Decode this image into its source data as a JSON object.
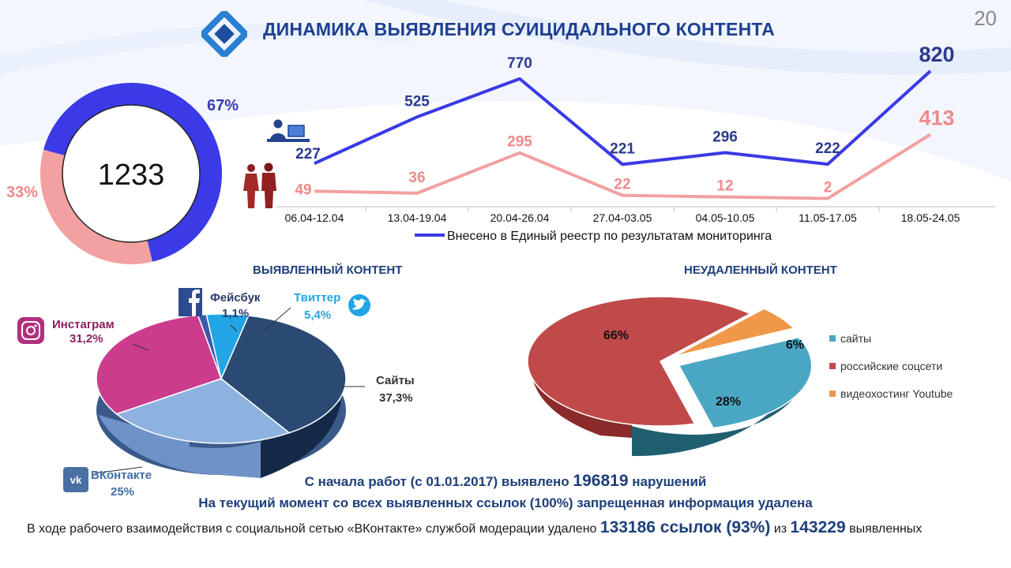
{
  "page_number": "20",
  "header": {
    "title": "ДИНАМИКА ВЫЯВЛЕНИЯ СУИЦИДАЛЬНОГО КОНТЕНТА",
    "logo_icon": "roskomnadzor-logo-icon"
  },
  "colors": {
    "blue_series": "#3a3ae6",
    "pink_series": "#f2a0a0",
    "title_blue": "#1e3f8f"
  },
  "chart_data": [
    {
      "type": "pie",
      "variant": "donut",
      "center_label": "1233",
      "slices": [
        {
          "value": 67,
          "label": "67%",
          "color": "#3a3ae6"
        },
        {
          "value": 33,
          "label": "33%",
          "color": "#f2a0a0"
        }
      ]
    },
    {
      "type": "line",
      "categories": [
        "06.04-12.04",
        "13.04-19.04",
        "20.04-26.04",
        "27.04-03.05",
        "04.05-10.05",
        "11.05-17.05",
        "18.05-24.05"
      ],
      "series": [
        {
          "name": "Внесено в Единый реестр по результатам мониторинга",
          "values": [
            227,
            525,
            770,
            221,
            296,
            222,
            820
          ],
          "color": "#3a3ae6"
        },
        {
          "values": [
            49,
            36,
            295,
            22,
            12,
            2,
            413
          ],
          "color": "#f2a0a0"
        }
      ],
      "legend_position": "bottom",
      "icons": [
        "people-icon",
        "computer-user-icon"
      ]
    },
    {
      "type": "pie",
      "variant": "3d",
      "title": "ВЫЯВЛЕННЫЙ КОНТЕНТ",
      "slices": [
        {
          "name": "Сайты",
          "value": 37.3,
          "label": "37,3%",
          "color": "#2a4a73",
          "icon": ""
        },
        {
          "name": "ВКонтакте",
          "value": 25,
          "label": "25%",
          "color": "#8eb2df",
          "icon": "vk-icon"
        },
        {
          "name": "Инстаграм",
          "value": 31.2,
          "label": "31,2%",
          "color": "#cc3c8c",
          "icon": "instagram-icon"
        },
        {
          "name": "Фейсбук",
          "value": 1.1,
          "label": "1,1%",
          "color": "#3a5aa8",
          "icon": "facebook-icon"
        },
        {
          "name": "Твиттер",
          "value": 5.4,
          "label": "5,4%",
          "color": "#22a5e6",
          "icon": "twitter-icon"
        }
      ]
    },
    {
      "type": "pie",
      "variant": "3d",
      "title": "НЕУДАЛЕННЫЙ КОНТЕНТ",
      "legend_position": "right",
      "slices": [
        {
          "name": "сайты",
          "value": 28,
          "label": "28%",
          "color": "#4aa7c4"
        },
        {
          "name": "российские соцсети",
          "value": 66,
          "label": "66%",
          "color": "#c0494a"
        },
        {
          "name": "видеохостинг Youtube",
          "value": 6,
          "label": "6%",
          "color": "#f0984a"
        }
      ]
    }
  ],
  "footer": {
    "line1": "С начала работ (с 01.01.2017) выявлено",
    "line1_number": "196819",
    "line1_suffix": "нарушений",
    "line2": "На текущий момент со всех выявленных ссылок (100%) запрещенная информация удалена",
    "line3_prefix": "В ходе рабочего взаимодействия с социальной сетью «ВКонтакте» службой модерации удалено",
    "line3_removed": "133186 ссылок (93%)",
    "line3_mid": "из",
    "line3_total": "143229",
    "line3_suffix": "выявленных"
  }
}
